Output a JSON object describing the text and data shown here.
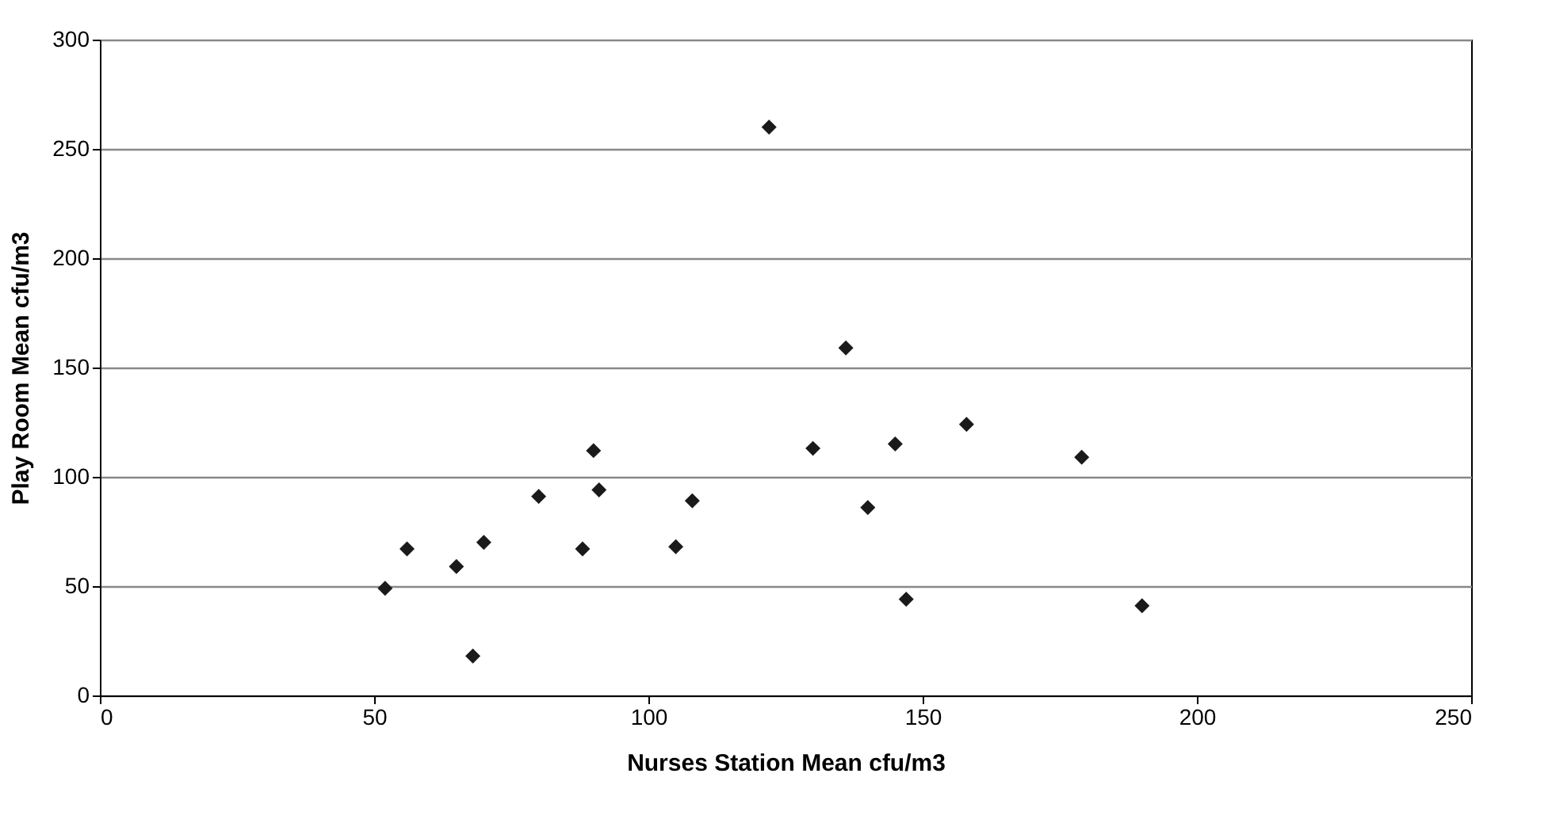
{
  "chart_data": {
    "type": "scatter",
    "xlabel": "Nurses Station Mean cfu/m3",
    "ylabel": "Play Room Mean cfu/m3",
    "x": [
      52,
      56,
      65,
      70,
      68,
      80,
      88,
      90,
      91,
      105,
      108,
      122,
      130,
      136,
      145,
      140,
      147,
      158,
      179,
      190
    ],
    "series": [
      {
        "color": "#1a1a1a",
        "values": [
          49,
          67,
          59,
          70,
          18,
          91,
          67,
          112,
          94,
          68,
          89,
          260,
          113,
          159,
          115,
          86,
          44,
          124,
          109,
          41
        ]
      }
    ],
    "xlim": [
      0,
      250
    ],
    "xticks": [
      0,
      50,
      100,
      150,
      200,
      250
    ],
    "ylim": [
      0,
      300
    ],
    "yticks": [
      0,
      50,
      100,
      150,
      200,
      250,
      300
    ],
    "grid": "y",
    "marker": "diamond"
  }
}
